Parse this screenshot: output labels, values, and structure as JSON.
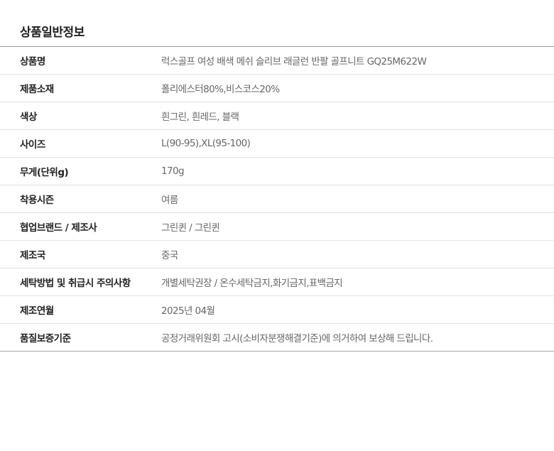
{
  "title": "상품일반정보",
  "rows": [
    {
      "label": "상품명",
      "value": "럭스골프 여성 배색 메쉬 슬리브 래글런 반팔 골프니트 GQ25M622W"
    },
    {
      "label": "제품소재",
      "value": "폴리에스터80%,비스코스20%"
    },
    {
      "label": "색상",
      "value": "흰그린, 흰레드, 블랙"
    },
    {
      "label": "사이즈",
      "value": "L(90-95),XL(95-100)"
    },
    {
      "label": "무게(단위g)",
      "value": "170g"
    },
    {
      "label": "착용시즌",
      "value": "여름"
    },
    {
      "label": "협업브랜드 / 제조사",
      "value": "그린퀸 / 그린퀸"
    },
    {
      "label": "제조국",
      "value": "중국"
    },
    {
      "label": "세탁방법 및 취급시 주의사항",
      "value": "개별세탁권장 / 온수세탁금지,화기금지,표백금지"
    },
    {
      "label": "제조연월",
      "value": "2025년 04월"
    },
    {
      "label": "품질보증기준",
      "value": "공정거래위원회 고시(소비자분쟁해결기준)에 의거하여  보상해 드립니다."
    }
  ]
}
